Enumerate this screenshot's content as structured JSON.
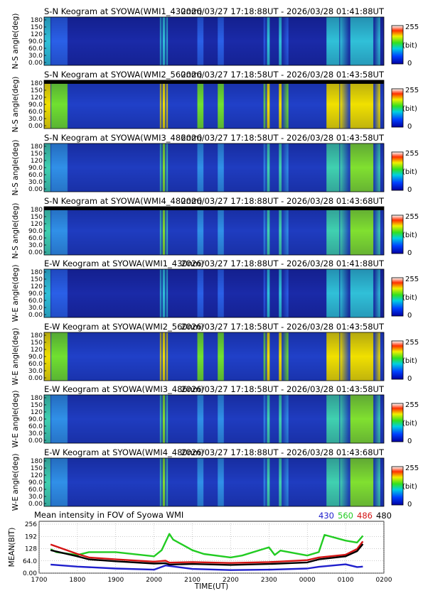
{
  "chart_data": {
    "keograms": [
      {
        "title": "S-N Keogram at SYOWA(WMI1_430nm)",
        "time_range": "2026/03/27 17:18:88UT - 2026/03/28 01:41:88UT",
        "ylabel": "N-S angle(deg)",
        "intensity": "low",
        "top_cut": false
      },
      {
        "title": "S-N Keogram at SYOWA(WMI2_560nm)",
        "time_range": "2026/03/27 17:18:58UT - 2026/03/28 01:43:58UT",
        "ylabel": "N-S angle(deg)",
        "intensity": "high",
        "top_cut": true
      },
      {
        "title": "S-N Keogram at SYOWA(WMI3_486nm)",
        "time_range": "2026/03/27 17:18:58UT - 2026/03/28 01:43:58UT",
        "ylabel": "N-S angle(deg)",
        "intensity": "mid",
        "top_cut": false
      },
      {
        "title": "S-N Keogram at SYOWA(WMI4_480nm)",
        "time_range": "2026/03/27 17:18:88UT - 2026/03/28 01:43:68UT",
        "ylabel": "N-S angle(deg)",
        "intensity": "mid",
        "top_cut": true
      },
      {
        "title": "E-W Keogram at SYOWA(WMI1_430nm)",
        "time_range": "2026/03/27 17:18:88UT - 2026/03/28 01:41:88UT",
        "ylabel": "W-E angle(deg)",
        "intensity": "low",
        "top_cut": false
      },
      {
        "title": "E-W Keogram at SYOWA(WMI2_560nm)",
        "time_range": "2026/03/27 17:18:58UT - 2026/03/28 01:43:58UT",
        "ylabel": "W-E angle(deg)",
        "intensity": "high",
        "top_cut": false
      },
      {
        "title": "E-W Keogram at SYOWA(WMI3_486nm)",
        "time_range": "2026/03/27 17:18:58UT - 2026/03/28 01:43:58UT",
        "ylabel": "W-E angle(deg)",
        "intensity": "mid",
        "top_cut": false
      },
      {
        "title": "E-W Keogram at SYOWA(WMI4_480nm)",
        "time_range": "2026/03/27 17:18:88UT - 2026/03/28 01:43:68UT",
        "ylabel": "W-E angle(deg)",
        "intensity": "mid",
        "top_cut": false
      }
    ],
    "keogram_yticks": [
      "0.00",
      "30.0",
      "60.0",
      "90.0",
      "120",
      "150",
      "180"
    ],
    "colorbar": {
      "max": "255",
      "unit": "(bit)",
      "min": "0"
    },
    "mean": {
      "type": "line",
      "title": "Mean intensity in FOV of Syowa WMI",
      "xlabel": "TIME(UT)",
      "ylabel": "MEAN(BIT)",
      "xticks": [
        "1700",
        "1800",
        "1900",
        "2000",
        "2100",
        "2200",
        "2300",
        "0000",
        "0100",
        "0200"
      ],
      "yticks": [
        "0.00",
        "64.0",
        "128",
        "192",
        "256"
      ],
      "ylim": [
        0,
        256
      ],
      "series": [
        {
          "name": "430",
          "color": "#1f1fcc",
          "x": [
            1730,
            1800,
            1900,
            2000,
            2030,
            2100,
            2200,
            2300,
            2400,
            2430,
            2500,
            2530,
            2545
          ],
          "y": [
            45,
            34,
            24,
            18,
            40,
            22,
            16,
            18,
            24,
            33,
            46,
            32,
            34
          ]
        },
        {
          "name": "560",
          "color": "#22cc22",
          "x": [
            1730,
            1745,
            1800,
            1830,
            1900,
            2000,
            2020,
            2040,
            2050,
            2100,
            2130,
            2200,
            2230,
            2300,
            2315,
            2330,
            2400,
            2430,
            2445,
            2500,
            2530,
            2545
          ],
          "y": [
            125,
            110,
            95,
            110,
            110,
            88,
            120,
            205,
            175,
            120,
            100,
            82,
            92,
            135,
            95,
            118,
            92,
            110,
            200,
            170,
            160,
            195
          ]
        },
        {
          "name": "486",
          "color": "#d41414",
          "x": [
            1730,
            1800,
            1830,
            1900,
            2000,
            2030,
            2040,
            2100,
            2200,
            2300,
            2400,
            2430,
            2500,
            2530,
            2545
          ],
          "y": [
            150,
            100,
            82,
            72,
            60,
            65,
            55,
            58,
            53,
            58,
            68,
            82,
            96,
            126,
            166
          ]
        },
        {
          "name": "480",
          "color": "#000000",
          "x": [
            1730,
            1800,
            1830,
            1900,
            2000,
            2030,
            2040,
            2100,
            2200,
            2300,
            2400,
            2430,
            2500,
            2530,
            2545
          ],
          "y": [
            120,
            88,
            72,
            62,
            50,
            52,
            45,
            48,
            43,
            48,
            56,
            72,
            88,
            115,
            152
          ]
        }
      ]
    }
  }
}
